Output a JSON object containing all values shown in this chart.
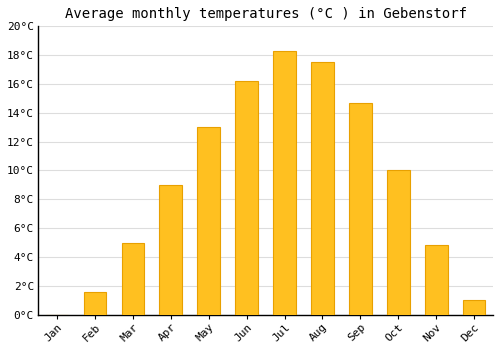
{
  "months": [
    "Jan",
    "Feb",
    "Mar",
    "Apr",
    "May",
    "Jun",
    "Jul",
    "Aug",
    "Sep",
    "Oct",
    "Nov",
    "Dec"
  ],
  "values": [
    0.0,
    1.6,
    5.0,
    9.0,
    13.0,
    16.2,
    18.3,
    17.5,
    14.7,
    10.0,
    4.8,
    1.0
  ],
  "bar_color": "#FFC020",
  "bar_edge_color": "#E8A000",
  "title": "Average monthly temperatures (°C ) in Gebenstorf",
  "ylim": [
    0,
    20
  ],
  "yticks": [
    0,
    2,
    4,
    6,
    8,
    10,
    12,
    14,
    16,
    18,
    20
  ],
  "ytick_labels": [
    "0°C",
    "2°C",
    "4°C",
    "6°C",
    "8°C",
    "10°C",
    "12°C",
    "14°C",
    "16°C",
    "18°C",
    "20°C"
  ],
  "background_color": "#FFFFFF",
  "plot_bg_color": "#FFFFFF",
  "grid_color": "#DDDDDD",
  "title_fontsize": 10,
  "tick_fontsize": 8,
  "bar_width": 0.6
}
